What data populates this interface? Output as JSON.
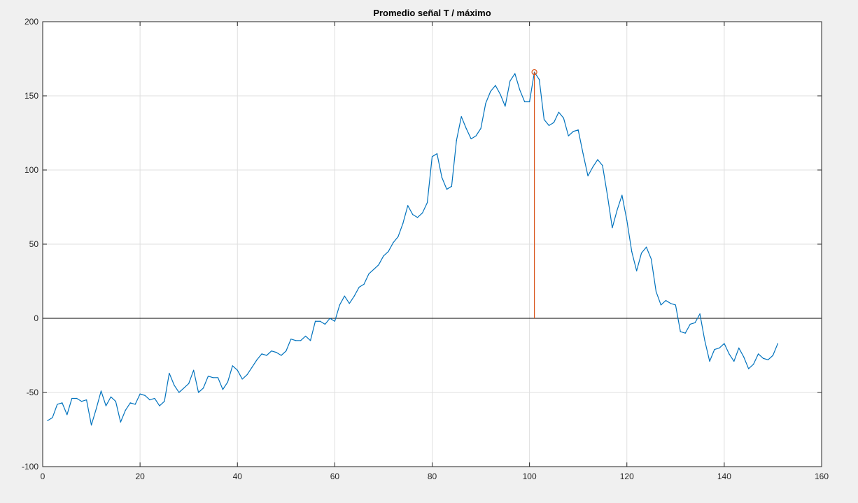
{
  "chart_data": {
    "type": "line",
    "title": "Promedio señal T / máximo",
    "xlabel": "",
    "ylabel": "",
    "xlim": [
      0,
      160
    ],
    "ylim": [
      -100,
      200
    ],
    "xticks": [
      0,
      20,
      40,
      60,
      80,
      100,
      120,
      140,
      160
    ],
    "yticks": [
      -100,
      -50,
      0,
      50,
      100,
      150,
      200
    ],
    "grid": true,
    "colors": {
      "series": "#0072bd",
      "marker": "#d95319",
      "zero_line": "#000000",
      "grid": "#dfdfdf",
      "axes_bg": "#ffffff",
      "figure_bg": "#f0f0f0"
    },
    "zero_line": 0,
    "series": [
      {
        "x": [
          1,
          2,
          3,
          4,
          5,
          6,
          7,
          8,
          9,
          10,
          11,
          12,
          13,
          14,
          15,
          16,
          17,
          18,
          19,
          20,
          21,
          22,
          23,
          24,
          25,
          26,
          27,
          28,
          29,
          30,
          31,
          32,
          33,
          34,
          35,
          36,
          37,
          38,
          39,
          40,
          41,
          42,
          43,
          44,
          45,
          46,
          47,
          48,
          49,
          50,
          51,
          52,
          53,
          54,
          55,
          56,
          57,
          58,
          59,
          60,
          61,
          62,
          63,
          64,
          65,
          66,
          67,
          68,
          69,
          70,
          71,
          72,
          73,
          74,
          75,
          76,
          77,
          78,
          79,
          80,
          81,
          82,
          83,
          84,
          85,
          86,
          87,
          88,
          89,
          90,
          91,
          92,
          93,
          94,
          95,
          96,
          97,
          98,
          99,
          100,
          101,
          102,
          103,
          104,
          105,
          106,
          107,
          108,
          109,
          110,
          111,
          112,
          113,
          114,
          115,
          116,
          117,
          118,
          119,
          120,
          121,
          122,
          123,
          124,
          125,
          126,
          127,
          128,
          129,
          130,
          131,
          132,
          133,
          134,
          135,
          136,
          137,
          138,
          139,
          140,
          141,
          142,
          143,
          144,
          145,
          146,
          147,
          148,
          149,
          150,
          151
        ],
        "values": [
          -69,
          -67,
          -58,
          -57,
          -65,
          -54,
          -54,
          -56,
          -55,
          -72,
          -61,
          -49,
          -59,
          -53,
          -56,
          -70,
          -62,
          -57,
          -58,
          -51,
          -52,
          -55,
          -54,
          -59,
          -56,
          -37,
          -45,
          -50,
          -47,
          -44,
          -35,
          -50,
          -47,
          -39,
          -40,
          -40,
          -48,
          -43,
          -32,
          -35,
          -41,
          -38,
          -33,
          -28,
          -24,
          -25,
          -22,
          -23,
          -25,
          -22,
          -14,
          -15,
          -15,
          -12,
          -15,
          -2,
          -2,
          -4,
          0,
          -2,
          9,
          15,
          10,
          15,
          21,
          23,
          30,
          33,
          36,
          42,
          45,
          51,
          55,
          64,
          76,
          70,
          68,
          71,
          78,
          109,
          111,
          95,
          87,
          89,
          120,
          136,
          128,
          121,
          123,
          128,
          145,
          153,
          157,
          151,
          143,
          160,
          165,
          154,
          146,
          146,
          166,
          161,
          134,
          130,
          132,
          139,
          135,
          123,
          126,
          127,
          111,
          96,
          102,
          107,
          103,
          83,
          61,
          73,
          83,
          66,
          45,
          32,
          44,
          48,
          40,
          18,
          9,
          12,
          10,
          9,
          -9,
          -10,
          -4,
          -3,
          3,
          -15,
          -29,
          -21,
          -20,
          -17,
          -24,
          -29,
          -20,
          -26,
          -34,
          -31,
          -24,
          -27,
          -28,
          -25,
          -17
        ]
      }
    ],
    "max_marker": {
      "x": 101,
      "y": 166
    }
  }
}
